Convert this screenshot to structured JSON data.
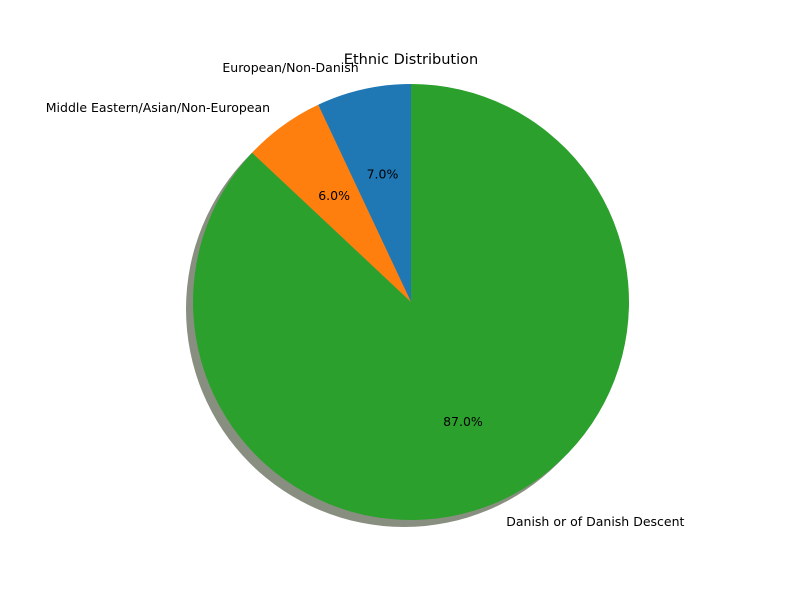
{
  "chart_data": {
    "type": "pie",
    "title": "Ethnic Distribution",
    "slices": [
      {
        "label": "European/Non-Danish",
        "value": 7.0,
        "pct_label": "7.0%",
        "color": "#1f77b4"
      },
      {
        "label": "Middle Eastern/Asian/Non-European",
        "value": 6.0,
        "pct_label": "6.0%",
        "color": "#ff7f0e"
      },
      {
        "label": "Danish or of Danish Descent",
        "value": 87.0,
        "pct_label": "87.0%",
        "color": "#2ca02c"
      }
    ],
    "start_angle_deg": 90,
    "direction": "counterclockwise",
    "shadow": true,
    "shadow_color": "#888f80"
  }
}
